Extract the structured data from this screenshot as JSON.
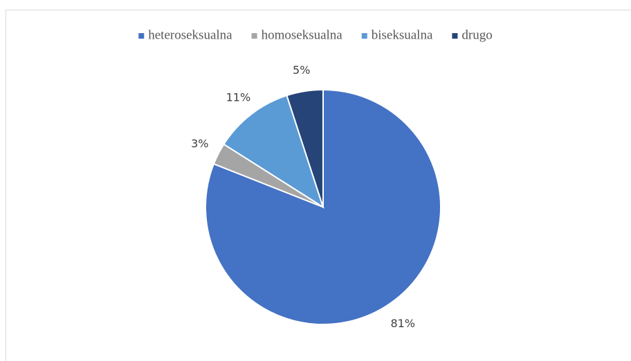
{
  "chart_data": {
    "type": "pie",
    "categories": [
      "heteroseksualna",
      "homoseksualna",
      "biseksualna",
      "drugo"
    ],
    "values": [
      81,
      3,
      11,
      5
    ],
    "value_labels": [
      "81%",
      "3%",
      "11%",
      "5%"
    ],
    "colors": [
      "#4472c4",
      "#a5a5a5",
      "#5b9bd5",
      "#264478"
    ],
    "legend": "top"
  }
}
